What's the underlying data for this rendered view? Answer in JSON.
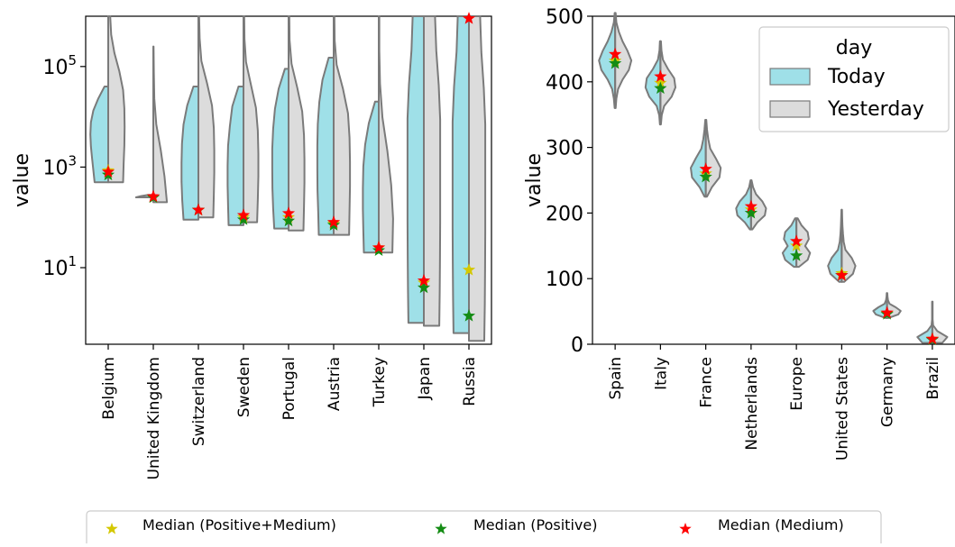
{
  "colors": {
    "today": "#9fe0e8",
    "yesterday": "#dcdcdc",
    "outline": "#7a7a7a",
    "star_pm": "#d4c800",
    "star_pos": "#148c14",
    "star_med": "#ff0000"
  },
  "legend_bottom": [
    {
      "label": "Median (Positive+Medium)",
      "color_key": "star_pm"
    },
    {
      "label": "Median (Positive)",
      "color_key": "star_pos"
    },
    {
      "label": "Median (Medium)",
      "color_key": "star_med"
    }
  ],
  "chart_data": [
    {
      "type": "violin",
      "ylabel": "value",
      "yscale": "log",
      "ylim": [
        0.3,
        1000000
      ],
      "yticks": [
        {
          "value": 10,
          "label": "10",
          "exp": "1"
        },
        {
          "value": 1000,
          "label": "10",
          "exp": "3"
        },
        {
          "value": 100000,
          "label": "10",
          "exp": "5"
        }
      ],
      "grid": false,
      "categories": [
        "Belgium",
        "United Kingdom",
        "Switzerland",
        "Sweden",
        "Portugal",
        "Austria",
        "Turkey",
        "Japan",
        "Russia"
      ],
      "today": [
        {
          "min": 500,
          "max": 40000,
          "w": [
            0.55,
            0.6,
            0.65,
            0.7,
            0.72,
            0.7,
            0.6,
            0.4,
            0.15
          ]
        },
        {
          "min": 250,
          "max": 280,
          "w": [
            0.7,
            0.5,
            0.2
          ]
        },
        {
          "min": 90,
          "max": 40000,
          "w": [
            0.6,
            0.65,
            0.68,
            0.68,
            0.66,
            0.6,
            0.45,
            0.2
          ]
        },
        {
          "min": 70,
          "max": 40000,
          "w": [
            0.6,
            0.62,
            0.64,
            0.64,
            0.62,
            0.55,
            0.45,
            0.2
          ]
        },
        {
          "min": 60,
          "max": 90000,
          "w": [
            0.58,
            0.62,
            0.65,
            0.66,
            0.66,
            0.62,
            0.55,
            0.4,
            0.15
          ]
        },
        {
          "min": 45,
          "max": 150000,
          "w": [
            0.6,
            0.62,
            0.65,
            0.66,
            0.66,
            0.64,
            0.58,
            0.45,
            0.2
          ]
        },
        {
          "min": 20,
          "max": 20000,
          "w": [
            0.6,
            0.62,
            0.64,
            0.64,
            0.62,
            0.55,
            0.4,
            0.15
          ]
        },
        {
          "min": 0.8,
          "max": 1000000,
          "w": [
            0.62,
            0.64,
            0.65,
            0.66,
            0.66,
            0.66,
            0.66,
            0.6,
            0.5,
            0.45
          ]
        },
        {
          "min": 0.5,
          "max": 1000000,
          "w": [
            0.62,
            0.64,
            0.65,
            0.66,
            0.66,
            0.66,
            0.66,
            0.6,
            0.5,
            0.45
          ]
        }
      ],
      "yesterday": [
        {
          "min": 500,
          "max": 1000000,
          "w": [
            0.6,
            0.62,
            0.65,
            0.66,
            0.65,
            0.6,
            0.45,
            0.25,
            0.12,
            0.08
          ]
        },
        {
          "min": 200,
          "max": 250000,
          "w": [
            0.55,
            0.45,
            0.3,
            0.12,
            0.04,
            0.02,
            0.01
          ]
        },
        {
          "min": 100,
          "max": 1000000,
          "w": [
            0.6,
            0.62,
            0.64,
            0.64,
            0.62,
            0.55,
            0.35,
            0.12,
            0.05,
            0.03
          ]
        },
        {
          "min": 80,
          "max": 1000000,
          "w": [
            0.55,
            0.58,
            0.6,
            0.6,
            0.58,
            0.5,
            0.3,
            0.1,
            0.04,
            0.03
          ]
        },
        {
          "min": 55,
          "max": 1000000,
          "w": [
            0.6,
            0.62,
            0.64,
            0.64,
            0.62,
            0.55,
            0.35,
            0.12,
            0.04,
            0.03
          ]
        },
        {
          "min": 45,
          "max": 1000000,
          "w": [
            0.62,
            0.64,
            0.66,
            0.66,
            0.64,
            0.58,
            0.38,
            0.12,
            0.04,
            0.03
          ]
        },
        {
          "min": 20,
          "max": 1000000,
          "w": [
            0.55,
            0.58,
            0.5,
            0.35,
            0.15,
            0.05,
            0.02,
            0.02
          ]
        },
        {
          "min": 0.7,
          "max": 1000000,
          "w": [
            0.62,
            0.64,
            0.65,
            0.66,
            0.66,
            0.66,
            0.66,
            0.6,
            0.5,
            0.45
          ]
        },
        {
          "min": 0.35,
          "max": 1000000,
          "w": [
            0.62,
            0.64,
            0.65,
            0.66,
            0.66,
            0.66,
            0.66,
            0.6,
            0.5,
            0.45
          ]
        }
      ],
      "median_pm": [
        850,
        250,
        140,
        100,
        100,
        75,
        25,
        5,
        9
      ],
      "median_pos": [
        700,
        250,
        140,
        90,
        85,
        70,
        22,
        4,
        1.1
      ],
      "median_med": [
        800,
        260,
        140,
        110,
        120,
        80,
        25,
        5.5,
        900000
      ]
    },
    {
      "type": "violin",
      "ylabel": "value",
      "ylim": [
        0,
        500
      ],
      "yticks": [
        0,
        100,
        200,
        300,
        400,
        500
      ],
      "grid": false,
      "legend": {
        "title": "day",
        "position": "upper right",
        "entries": [
          "Today",
          "Yesterday"
        ]
      },
      "categories": [
        "Spain",
        "Italy",
        "France",
        "Netherlands",
        "Europe",
        "United States",
        "Germany",
        "Brazil"
      ],
      "today": [
        {
          "min": 360,
          "max": 505,
          "w": [
            0.02,
            0.05,
            0.12,
            0.3,
            0.55,
            0.65,
            0.5,
            0.3,
            0.15,
            0.05,
            0.02
          ]
        },
        {
          "min": 335,
          "max": 462,
          "w": [
            0.02,
            0.05,
            0.15,
            0.45,
            0.6,
            0.55,
            0.3,
            0.1,
            0.04,
            0.02
          ]
        },
        {
          "min": 225,
          "max": 342,
          "w": [
            0.05,
            0.25,
            0.55,
            0.6,
            0.4,
            0.18,
            0.1,
            0.05,
            0.02
          ]
        },
        {
          "min": 175,
          "max": 250,
          "w": [
            0.05,
            0.25,
            0.55,
            0.6,
            0.45,
            0.2,
            0.08,
            0.02
          ]
        },
        {
          "min": 118,
          "max": 192,
          "w": [
            0.1,
            0.45,
            0.55,
            0.35,
            0.5,
            0.45,
            0.2,
            0.05
          ]
        },
        {
          "min": 95,
          "max": 205,
          "w": [
            0.1,
            0.45,
            0.55,
            0.4,
            0.15,
            0.08,
            0.05,
            0.03,
            0.02,
            0.01
          ]
        },
        {
          "min": 40,
          "max": 78,
          "w": [
            0.05,
            0.45,
            0.55,
            0.35,
            0.1,
            0.04,
            0.02,
            0.01
          ]
        },
        {
          "min": 2,
          "max": 65,
          "w": [
            0.4,
            0.6,
            0.2,
            0.03,
            0.01,
            0.01,
            0.01,
            0.01
          ]
        }
      ],
      "median_pm": [
        432,
        398,
        260,
        205,
        150,
        108,
        47,
        8
      ],
      "median_pos": [
        428,
        390,
        255,
        200,
        135,
        105,
        46,
        7
      ],
      "median_med": [
        442,
        408,
        267,
        210,
        157,
        105,
        48,
        8
      ]
    }
  ]
}
